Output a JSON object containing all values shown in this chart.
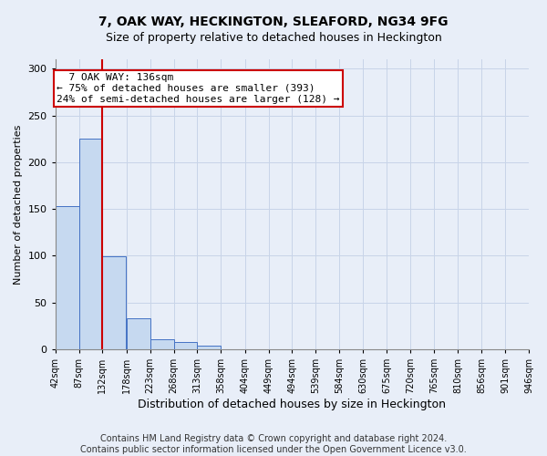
{
  "title": "7, OAK WAY, HECKINGTON, SLEAFORD, NG34 9FG",
  "subtitle": "Size of property relative to detached houses in Heckington",
  "xlabel": "Distribution of detached houses by size in Heckington",
  "ylabel": "Number of detached properties",
  "bar_heights": [
    153,
    225,
    99,
    33,
    11,
    8,
    4,
    0,
    0,
    0,
    0,
    0,
    0,
    0,
    0,
    0,
    0,
    0,
    0,
    0
  ],
  "bin_edges": [
    42,
    87,
    132,
    178,
    223,
    268,
    313,
    358,
    404,
    449,
    494,
    539,
    584,
    630,
    675,
    720,
    765,
    810,
    856,
    901,
    946
  ],
  "bar_color": "#c6d9f0",
  "bar_edge_color": "#4472c4",
  "grid_color": "#c8d4e8",
  "bg_color": "#e8eef8",
  "red_line_x": 132,
  "red_line_color": "#cc0000",
  "annotation_text": "  7 OAK WAY: 136sqm\n← 75% of detached houses are smaller (393)\n24% of semi-detached houses are larger (128) →",
  "annotation_box_color": "#cc0000",
  "ylim": [
    0,
    310
  ],
  "yticks": [
    0,
    50,
    100,
    150,
    200,
    250,
    300
  ],
  "xtick_labels": [
    "42sqm",
    "87sqm",
    "132sqm",
    "178sqm",
    "223sqm",
    "268sqm",
    "313sqm",
    "358sqm",
    "404sqm",
    "449sqm",
    "494sqm",
    "539sqm",
    "584sqm",
    "630sqm",
    "675sqm",
    "720sqm",
    "765sqm",
    "810sqm",
    "856sqm",
    "901sqm",
    "946sqm"
  ],
  "footer_text": "Contains HM Land Registry data © Crown copyright and database right 2024.\nContains public sector information licensed under the Open Government Licence v3.0.",
  "title_fontsize": 10,
  "subtitle_fontsize": 9,
  "ylabel_fontsize": 8,
  "xlabel_fontsize": 9,
  "annotation_fontsize": 8,
  "footer_fontsize": 7,
  "tick_fontsize": 7
}
